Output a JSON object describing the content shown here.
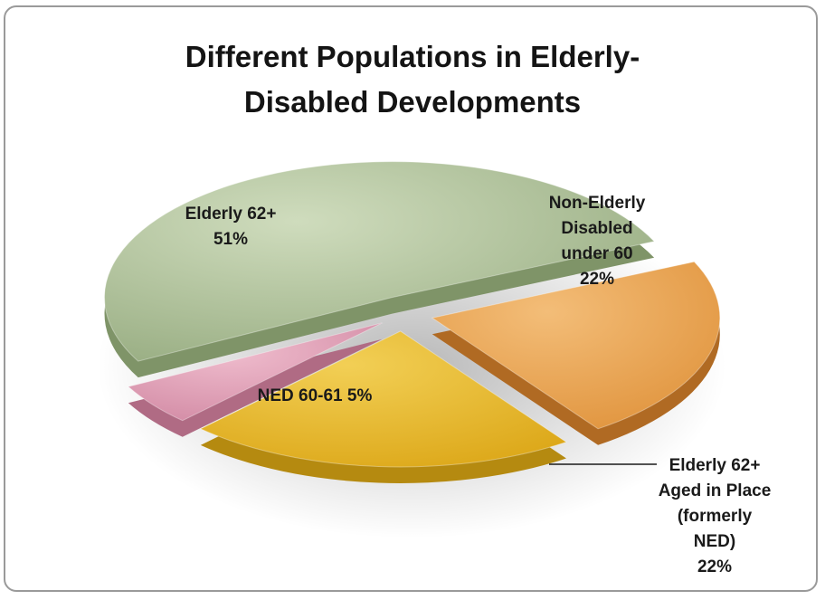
{
  "chart_data": {
    "type": "pie",
    "title_lines": [
      "Different Populations in Elderly-",
      "Disabled Developments"
    ],
    "series": [
      {
        "label_lines": [
          "Elderly 62+",
          "51%"
        ],
        "value": 51,
        "color": "#a7bb92"
      },
      {
        "label_lines": [
          "Non-Elderly",
          "Disabled",
          "under 60",
          "22%"
        ],
        "value": 22,
        "color": "#e9a24e"
      },
      {
        "label_lines": [
          "Elderly 62+",
          "Aged in Place",
          "(formerly",
          "NED)",
          "22%"
        ],
        "value": 22,
        "color": "#e8ba28"
      },
      {
        "label_lines": [
          "NED 60-61 5%"
        ],
        "value": 5,
        "color": "#dc9ab2"
      }
    ],
    "legend": "none",
    "style": "3d-exploded-pie"
  }
}
